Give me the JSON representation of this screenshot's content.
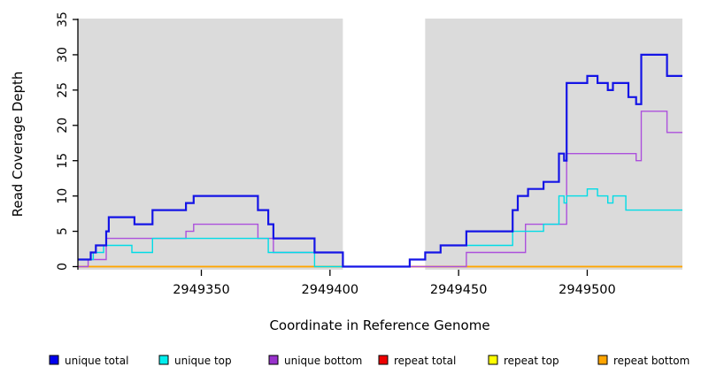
{
  "chart_data": {
    "type": "line",
    "subtype": "step-coverage-plot",
    "title": "",
    "xlabel": "Coordinate in Reference Genome",
    "ylabel": "Read Coverage Depth",
    "xlim": [
      2949302,
      2949537
    ],
    "ylim": [
      0,
      35
    ],
    "x_ticks": [
      2949350,
      2949400,
      2949450,
      2949500
    ],
    "y_ticks": [
      0,
      5,
      10,
      15,
      20,
      25,
      30,
      35
    ],
    "grid": false,
    "legend_position": "bottom",
    "plot_bg_color": "#DBDBDB",
    "gap_color": "#FFFFFF",
    "shaded_regions": [
      {
        "name": "unique-region-left",
        "from": 2949302,
        "to": 2949405
      },
      {
        "name": "unique-region-right",
        "from": 2949437,
        "to": 2949537
      }
    ],
    "series": [
      {
        "name": "repeat total",
        "color": "#EE0000",
        "width": 1.6,
        "points": [
          [
            2949302,
            0
          ]
        ]
      },
      {
        "name": "repeat top",
        "color": "#FFFF00",
        "width": 1.6,
        "points": [
          [
            2949302,
            0
          ]
        ]
      },
      {
        "name": "repeat bottom",
        "color": "#FFA500",
        "width": 1.6,
        "points": [
          [
            2949302,
            0
          ]
        ]
      },
      {
        "name": "unique bottom",
        "color": "#AC50DC",
        "width": 1.4,
        "points": [
          [
            2949302,
            0
          ],
          [
            2949306,
            1
          ],
          [
            2949313,
            4
          ],
          [
            2949344,
            5
          ],
          [
            2949347,
            6
          ],
          [
            2949372,
            4
          ],
          [
            2949378,
            2
          ],
          [
            2949405,
            0
          ],
          [
            2949453,
            2
          ],
          [
            2949476,
            6
          ],
          [
            2949492,
            16
          ],
          [
            2949519,
            15
          ],
          [
            2949521,
            22
          ],
          [
            2949531,
            19
          ]
        ]
      },
      {
        "name": "unique top",
        "color": "#00DCE6",
        "width": 1.4,
        "points": [
          [
            2949302,
            1
          ],
          [
            2949308,
            2
          ],
          [
            2949312,
            3
          ],
          [
            2949323,
            2
          ],
          [
            2949331,
            4
          ],
          [
            2949376,
            2
          ],
          [
            2949394,
            0
          ],
          [
            2949431,
            1
          ],
          [
            2949437,
            2
          ],
          [
            2949443,
            3
          ],
          [
            2949471,
            5
          ],
          [
            2949483,
            6
          ],
          [
            2949489,
            10
          ],
          [
            2949491,
            9
          ],
          [
            2949492,
            10
          ],
          [
            2949500,
            11
          ],
          [
            2949504,
            10
          ],
          [
            2949508,
            9
          ],
          [
            2949510,
            10
          ],
          [
            2949515,
            8
          ]
        ]
      },
      {
        "name": "unique total",
        "color": "#1414E6",
        "width": 2.2,
        "points": [
          [
            2949302,
            1
          ],
          [
            2949307,
            2
          ],
          [
            2949309,
            3
          ],
          [
            2949313,
            5
          ],
          [
            2949314,
            7
          ],
          [
            2949324,
            6
          ],
          [
            2949331,
            8
          ],
          [
            2949344,
            9
          ],
          [
            2949347,
            10
          ],
          [
            2949372,
            8
          ],
          [
            2949376,
            6
          ],
          [
            2949378,
            4
          ],
          [
            2949394,
            2
          ],
          [
            2949405,
            0
          ],
          [
            2949431,
            1
          ],
          [
            2949437,
            2
          ],
          [
            2949443,
            3
          ],
          [
            2949453,
            5
          ],
          [
            2949471,
            8
          ],
          [
            2949473,
            10
          ],
          [
            2949477,
            11
          ],
          [
            2949483,
            12
          ],
          [
            2949489,
            16
          ],
          [
            2949491,
            15
          ],
          [
            2949492,
            26
          ],
          [
            2949500,
            27
          ],
          [
            2949504,
            26
          ],
          [
            2949508,
            25
          ],
          [
            2949510,
            26
          ],
          [
            2949516,
            24
          ],
          [
            2949519,
            23
          ],
          [
            2949521,
            30
          ],
          [
            2949531,
            27
          ]
        ]
      }
    ],
    "legend": [
      {
        "label": "unique total",
        "color": "#0000EE"
      },
      {
        "label": "unique top",
        "color": "#00EEEE"
      },
      {
        "label": "unique bottom",
        "color": "#9932CC"
      },
      {
        "label": "repeat total",
        "color": "#EE0000"
      },
      {
        "label": "repeat top",
        "color": "#FFFF00"
      },
      {
        "label": "repeat bottom",
        "color": "#FFA500"
      }
    ]
  }
}
